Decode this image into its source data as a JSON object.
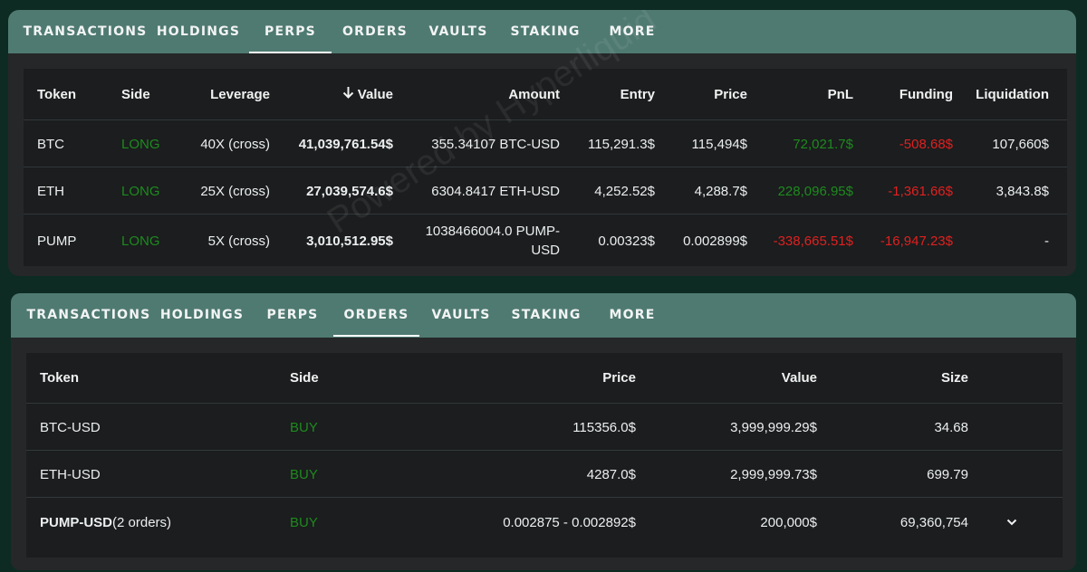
{
  "tabs": [
    "TRANSACTIONS",
    "HOLDINGS",
    "PERPS",
    "ORDERS",
    "VAULTS",
    "STAKING",
    "MORE"
  ],
  "watermark": "Powered by Hyperliquid",
  "perps": {
    "active_tab": "PERPS",
    "headers": {
      "token": "Token",
      "side": "Side",
      "leverage": "Leverage",
      "value": "Value",
      "amount": "Amount",
      "entry": "Entry",
      "price": "Price",
      "pnl": "PnL",
      "funding": "Funding",
      "liquidation": "Liquidation"
    },
    "sort_icon": "arrow-down-icon",
    "rows": [
      {
        "token": "BTC",
        "side": "LONG",
        "leverage": "40X (cross)",
        "value": "41,039,761.54$",
        "amount": "355.34107 BTC-USD",
        "entry": "115,291.3$",
        "price": "115,494$",
        "pnl": "72,021.7$",
        "funding": "-508.68$",
        "liquidation": "107,660$"
      },
      {
        "token": "ETH",
        "side": "LONG",
        "leverage": "25X (cross)",
        "value": "27,039,574.6$",
        "amount": "6304.8417 ETH-USD",
        "entry": "4,252.52$",
        "price": "4,288.7$",
        "pnl": "228,096.95$",
        "funding": "-1,361.66$",
        "liquidation": "3,843.8$"
      },
      {
        "token": "PUMP",
        "side": "LONG",
        "leverage": "5X (cross)",
        "value": "3,010,512.95$",
        "amount": "1038466004.0 PUMP-USD",
        "entry": "0.00323$",
        "price": "0.002899$",
        "pnl": "-338,665.51$",
        "funding": "-16,947.23$",
        "liquidation": "-"
      }
    ]
  },
  "orders": {
    "active_tab": "ORDERS",
    "headers": {
      "token": "Token",
      "side": "Side",
      "price": "Price",
      "value": "Value",
      "size": "Size"
    },
    "rows": [
      {
        "token": "BTC-USD",
        "token_suffix": "",
        "side": "BUY",
        "price": "115356.0$",
        "value": "3,999,999.29$",
        "size": "34.68"
      },
      {
        "token": "ETH-USD",
        "token_suffix": "",
        "side": "BUY",
        "price": "4287.0$",
        "value": "2,999,999.73$",
        "size": "699.79"
      },
      {
        "token": "PUMP-USD",
        "token_suffix": "(2 orders)",
        "side": "BUY",
        "price": "0.002875 - 0.002892$",
        "value": "200,000$",
        "size": "69,360,754"
      }
    ],
    "expand_icon": "chevron-down-icon"
  },
  "colors": {
    "positive": "#1e8a1e",
    "negative": "#e02020",
    "tab_bar": "#4f7a71",
    "background": "#0d2b22"
  }
}
